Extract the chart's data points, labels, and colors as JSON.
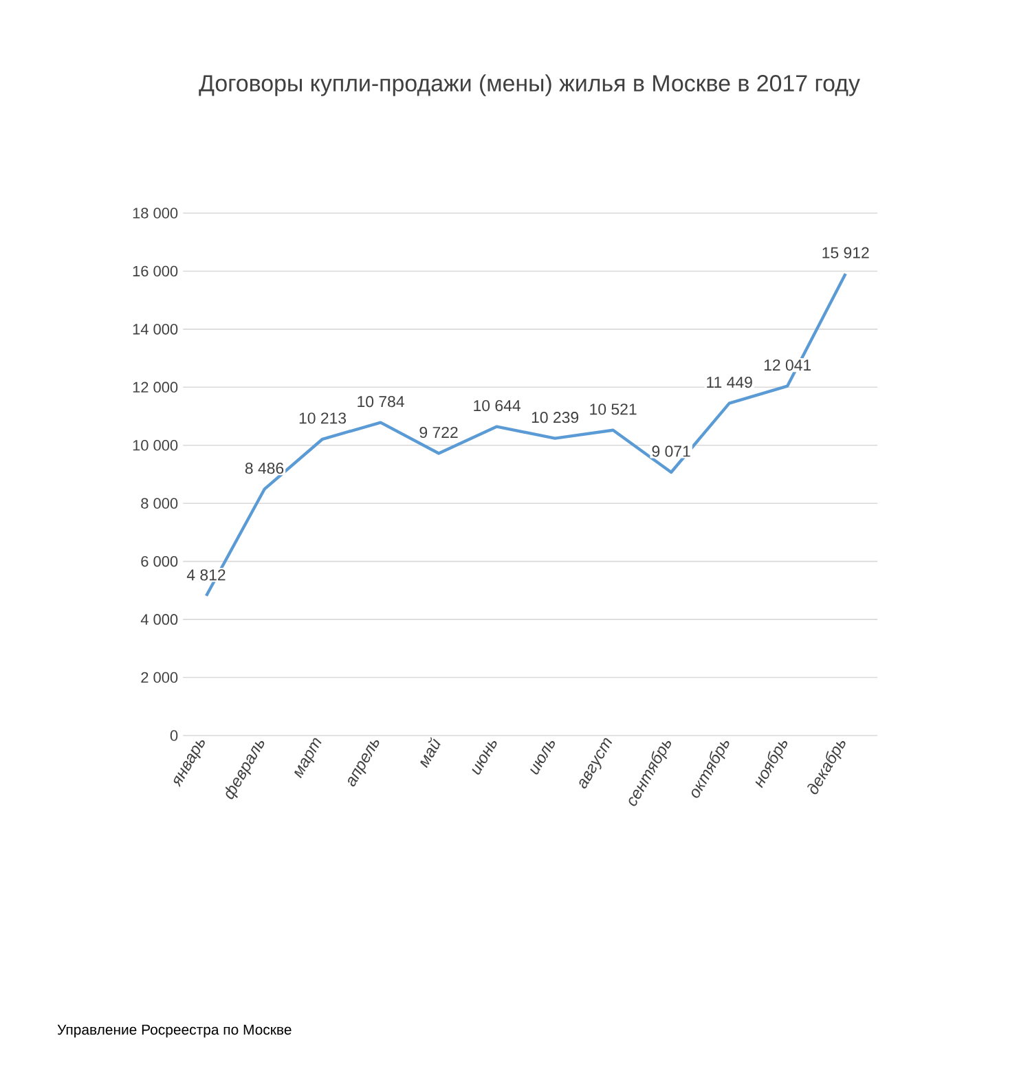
{
  "chart_data": {
    "type": "line",
    "title": "Договоры купли-продажи (мены) жилья в Москве в  2017 году",
    "categories": [
      "январь",
      "февраль",
      "март",
      "апрель",
      "май",
      "июнь",
      "июль",
      "август",
      "сентябрь",
      "октябрь",
      "ноябрь",
      "декабрь"
    ],
    "series": [
      {
        "color": "#5b9bd5",
        "values": [
          4812,
          8486,
          10213,
          10784,
          9722,
          10644,
          10239,
          10521,
          9071,
          11449,
          12041,
          15912
        ],
        "value_labels": [
          "4 812",
          "8 486",
          "10 213",
          "10 784",
          "9 722",
          "10 644",
          "10 239",
          "10 521",
          "9 071",
          "11 449",
          "12 041",
          "15 912"
        ]
      }
    ],
    "ylim": [
      0,
      18000
    ],
    "yticks": [
      {
        "value": 0,
        "label": "0"
      },
      {
        "value": 2000,
        "label": "2 000"
      },
      {
        "value": 4000,
        "label": "4 000"
      },
      {
        "value": 6000,
        "label": "6 000"
      },
      {
        "value": 8000,
        "label": "8 000"
      },
      {
        "value": 10000,
        "label": "10 000"
      },
      {
        "value": 12000,
        "label": "12 000"
      },
      {
        "value": 14000,
        "label": "14 000"
      },
      {
        "value": 16000,
        "label": "16 000"
      },
      {
        "value": 18000,
        "label": "18 000"
      }
    ],
    "grid": "y",
    "marker": "none",
    "line_style": "solid",
    "annotations": [
      "Управление Росреестра по Москве"
    ]
  }
}
